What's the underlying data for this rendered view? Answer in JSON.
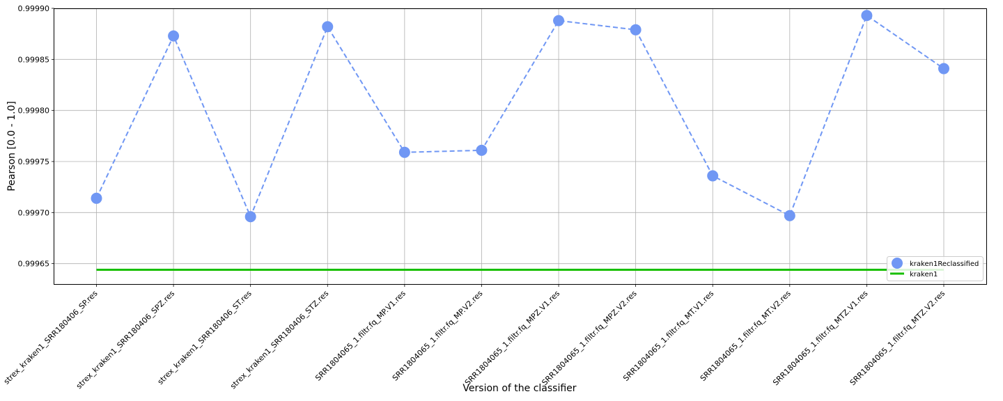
{
  "chart_data": {
    "type": "line",
    "categories": [
      "strex_kraken1_SRR180406_SP.res",
      "strex_kraken1_SRR180406_SPZ.res",
      "strex_kraken1_SRR180406_ST.res",
      "strex_kraken1_SRR180406_STZ.res",
      "SRR1804065_1.filtr.fq_MP.V1.res",
      "SRR1804065_1.filtr.fq_MP.V2.res",
      "SRR1804065_1.filtr.fq_MPZ.V1.res",
      "SRR1804065_1.filtr.fq_MPZ.V2.res",
      "SRR1804065_1.filtr.fq_MT.V1.res",
      "SRR1804065_1.filtr.fq_MT.V2.res",
      "SRR1804065_1.filtr.fq_MTZ.V1.res",
      "SRR1804065_1.filtr.fq_MTZ.V2.res"
    ],
    "series": [
      {
        "name": "kraken1Reclassified",
        "style": "dashed-line-with-markers",
        "color": "#7097f4",
        "values": [
          0.999714,
          0.999873,
          0.999696,
          0.999882,
          0.999759,
          0.999761,
          0.999888,
          0.999879,
          0.999736,
          0.999697,
          0.999893,
          0.999841
        ]
      },
      {
        "name": "kraken1",
        "style": "solid-line",
        "color": "#17bf00",
        "values": [
          0.999644,
          0.999644,
          0.999644,
          0.999644,
          0.999644,
          0.999644,
          0.999644,
          0.999644,
          0.999644,
          0.999644,
          0.999644,
          0.999644
        ]
      }
    ],
    "xlabel": "Version of the classifier",
    "ylabel": "Pearson [0.0 - 1.0]",
    "ylim": [
      0.99963,
      0.9999
    ],
    "yticks": [
      "0.99965",
      "0.99970",
      "0.99975",
      "0.99980",
      "0.99985",
      "0.99990"
    ],
    "ytick_values": [
      0.99965,
      0.9997,
      0.99975,
      0.9998,
      0.99985,
      0.9999
    ],
    "grid": true,
    "legend_position": "lower-right"
  }
}
